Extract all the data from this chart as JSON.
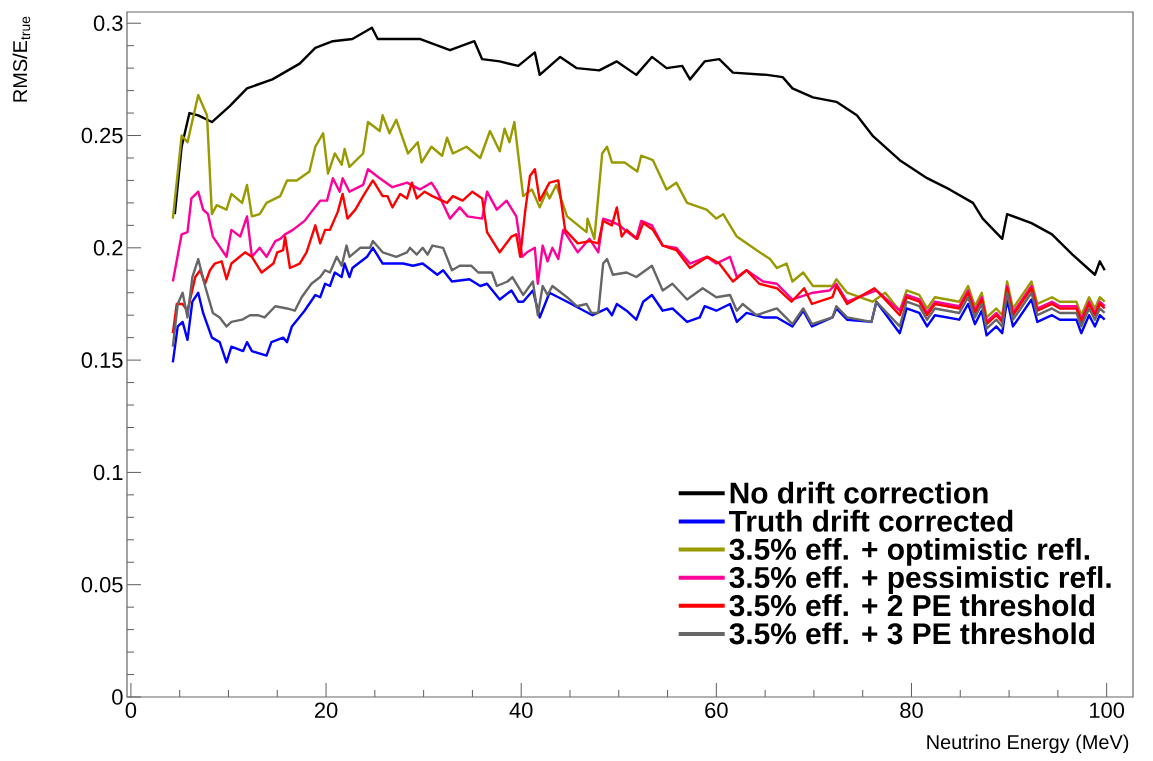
{
  "chart_data": {
    "type": "line",
    "xlabel": "Neutrino Energy (MeV)",
    "ylabel": "RMS/E$_{true}$",
    "xlim": [
      -0.4,
      102.7
    ],
    "ylim": [
      0,
      0.305
    ],
    "xticks": [
      0,
      20,
      40,
      60,
      80,
      100
    ],
    "yticks": [
      0,
      0.05,
      0.1,
      0.15,
      0.2,
      0.25,
      0.3
    ],
    "legend": "bottom right",
    "marker": "none",
    "line_style": "solid",
    "grid": false,
    "series": [
      {
        "name": "No drift correction",
        "color": "#000000",
        "x": [
          4.5,
          5.2,
          6.0,
          6.9,
          8.3,
          10.1,
          11.9,
          14.5,
          17.3,
          18.9,
          20.7,
          22.7,
          24.7,
          25.3,
          29.6,
          32.7,
          35.2,
          36,
          37.8,
          39.7,
          41.4,
          41.9,
          44,
          45.7,
          48,
          49.8,
          51.8,
          53.4,
          54.9,
          56.5,
          57.3,
          58.8,
          60.3,
          61.7,
          65.2,
          66.8,
          67.8,
          69.9,
          72.3,
          74.4,
          76,
          78.8,
          81.6,
          83.9,
          86.3,
          87.3,
          89.3,
          89.8,
          92.3,
          94.4,
          96.5,
          98.8,
          99.3,
          99.8
        ],
        "values": [
          0.215,
          0.245,
          0.26,
          0.259,
          0.256,
          0.263,
          0.271,
          0.275,
          0.282,
          0.289,
          0.292,
          0.293,
          0.298,
          0.293,
          0.293,
          0.288,
          0.292,
          0.284,
          0.283,
          0.281,
          0.287,
          0.277,
          0.285,
          0.28,
          0.279,
          0.283,
          0.277,
          0.285,
          0.28,
          0.281,
          0.275,
          0.283,
          0.284,
          0.278,
          0.277,
          0.276,
          0.271,
          0.267,
          0.265,
          0.259,
          0.25,
          0.239,
          0.231,
          0.226,
          0.22,
          0.213,
          0.204,
          0.215,
          0.211,
          0.206,
          0.197,
          0.188,
          0.194,
          0.19
        ]
      },
      {
        "name": "Truth drift corrected",
        "color": "#0000ff",
        "x": [
          4.3,
          4.8,
          5.3,
          5.8,
          6.3,
          6.9,
          7.4,
          8.3,
          9.1,
          9.8,
          10.3,
          11.5,
          11.9,
          12.4,
          13.9,
          14.4,
          15.6,
          16,
          16.5,
          17.8,
          18.9,
          19.4,
          19.9,
          20.4,
          20.9,
          21.6,
          21.9,
          22.4,
          22.7,
          24.2,
          24.8,
          25.8,
          27.9,
          28.9,
          29.9,
          31.4,
          32,
          32.9,
          34.7,
          35.8,
          36.5,
          37.8,
          39,
          39.7,
          40.2,
          41.2,
          41.9,
          42.9,
          44.7,
          46,
          47.3,
          48.8,
          49.3,
          49.8,
          50.8,
          51.8,
          52.5,
          53.4,
          54.5,
          55.5,
          57,
          58.3,
          58.8,
          60,
          61.4,
          62.1,
          63.1,
          64.8,
          66.2,
          67.8,
          68.9,
          69.8,
          71.9,
          72.3,
          73.4,
          75.9,
          76.4,
          78.8,
          79.5,
          80.8,
          81.6,
          82.4,
          84.9,
          85.8,
          86.5,
          87.2,
          87.7,
          88.7,
          89.3,
          89.8,
          90.4,
          92.3,
          92.9,
          94.4,
          95.2,
          96.9,
          97.4,
          98.2,
          98.8,
          99.3,
          99.8
        ],
        "values": [
          0.149,
          0.165,
          0.167,
          0.159,
          0.176,
          0.18,
          0.171,
          0.16,
          0.158,
          0.149,
          0.156,
          0.154,
          0.158,
          0.154,
          0.152,
          0.158,
          0.16,
          0.158,
          0.165,
          0.172,
          0.179,
          0.178,
          0.184,
          0.183,
          0.189,
          0.187,
          0.193,
          0.187,
          0.191,
          0.196,
          0.2,
          0.193,
          0.193,
          0.192,
          0.193,
          0.188,
          0.19,
          0.185,
          0.186,
          0.183,
          0.184,
          0.177,
          0.181,
          0.176,
          0.176,
          0.181,
          0.169,
          0.18,
          0.176,
          0.173,
          0.17,
          0.173,
          0.17,
          0.175,
          0.172,
          0.168,
          0.176,
          0.179,
          0.172,
          0.173,
          0.167,
          0.169,
          0.174,
          0.172,
          0.175,
          0.167,
          0.171,
          0.169,
          0.169,
          0.165,
          0.172,
          0.165,
          0.169,
          0.173,
          0.168,
          0.167,
          0.176,
          0.162,
          0.173,
          0.171,
          0.165,
          0.17,
          0.168,
          0.175,
          0.166,
          0.172,
          0.161,
          0.165,
          0.162,
          0.177,
          0.165,
          0.177,
          0.167,
          0.17,
          0.168,
          0.168,
          0.162,
          0.17,
          0.165,
          0.17,
          0.168
        ]
      },
      {
        "name": "3.5% eff.  + optimistic refl.",
        "color": "#999900",
        "x": [
          4.3,
          5.2,
          5.8,
          6.9,
          7.8,
          8.3,
          8.8,
          9.8,
          10.3,
          11.4,
          11.9,
          12.4,
          13.2,
          13.9,
          15.3,
          16,
          17,
          18.3,
          18.9,
          19.7,
          20.2,
          20.9,
          21.6,
          21.9,
          22.4,
          23.8,
          24.3,
          25.5,
          25.8,
          26.5,
          27.2,
          28.4,
          29.4,
          29.8,
          30.8,
          31.9,
          32.4,
          33,
          34.4,
          35.8,
          36.8,
          37.8,
          38.3,
          38.8,
          39.3,
          40.2,
          41.1,
          41.9,
          42.6,
          42.9,
          43.6,
          44.7,
          46.7,
          46.8,
          47.5,
          48.3,
          48.8,
          49.3,
          50.6,
          51.9,
          52.3,
          53.5,
          54.9,
          55.9,
          57,
          59,
          60,
          60.7,
          62.1,
          64.1,
          65.5,
          66.2,
          67.2,
          67.8,
          68.9,
          69.9,
          71.9,
          72.3,
          73.4,
          76,
          77.3,
          78.8,
          79.5,
          80.8,
          81.6,
          82.4,
          84.9,
          85.8,
          86.5,
          87.2,
          87.7,
          88.7,
          89.3,
          89.8,
          90.4,
          92.3,
          92.9,
          94.4,
          95.2,
          96.9,
          97.4,
          98.2,
          98.8,
          99.3,
          99.8
        ],
        "values": [
          0.213,
          0.25,
          0.247,
          0.268,
          0.259,
          0.215,
          0.219,
          0.217,
          0.224,
          0.22,
          0.228,
          0.214,
          0.215,
          0.22,
          0.223,
          0.23,
          0.23,
          0.234,
          0.245,
          0.251,
          0.233,
          0.242,
          0.237,
          0.244,
          0.236,
          0.242,
          0.256,
          0.252,
          0.259,
          0.251,
          0.257,
          0.242,
          0.247,
          0.238,
          0.245,
          0.241,
          0.249,
          0.242,
          0.245,
          0.24,
          0.252,
          0.243,
          0.253,
          0.247,
          0.256,
          0.223,
          0.226,
          0.218,
          0.225,
          0.222,
          0.228,
          0.214,
          0.207,
          0.213,
          0.204,
          0.242,
          0.245,
          0.238,
          0.238,
          0.234,
          0.241,
          0.239,
          0.226,
          0.229,
          0.22,
          0.217,
          0.213,
          0.215,
          0.205,
          0.199,
          0.195,
          0.191,
          0.193,
          0.185,
          0.189,
          0.183,
          0.183,
          0.186,
          0.18,
          0.176,
          0.18,
          0.172,
          0.181,
          0.179,
          0.173,
          0.178,
          0.176,
          0.183,
          0.174,
          0.18,
          0.169,
          0.173,
          0.17,
          0.185,
          0.173,
          0.185,
          0.175,
          0.178,
          0.176,
          0.176,
          0.17,
          0.178,
          0.173,
          0.178,
          0.176
        ]
      },
      {
        "name": "3.5% eff. + pessimistic refl.",
        "color": "#ff0099",
        "x": [
          4.3,
          5.2,
          5.8,
          6.2,
          6.9,
          7.4,
          7.9,
          8.4,
          9.8,
          10.3,
          11.2,
          11.9,
          12.4,
          13.2,
          13.9,
          14.8,
          15.3,
          15.8,
          16.6,
          17.8,
          18.5,
          19.4,
          20.1,
          20.7,
          21.4,
          21.7,
          22.4,
          23.8,
          24.3,
          25.5,
          26.8,
          28.3,
          29.6,
          30.8,
          31.4,
          32.7,
          33.7,
          34.5,
          36,
          36.5,
          37.5,
          38.5,
          39.5,
          40.1,
          40.6,
          41.4,
          41.7,
          42.2,
          42.7,
          43.2,
          43.8,
          44.3,
          45.8,
          47,
          47.9,
          48.4,
          49.1,
          50.1,
          50.6,
          51.8,
          52.3,
          53.4,
          54.5,
          55.9,
          57.3,
          59,
          60,
          61.4,
          62.1,
          63.1,
          64.8,
          66.2,
          67.8,
          69.9,
          71.6,
          72.3,
          73.4,
          76.4,
          78.8,
          79.5,
          80.8,
          81.6,
          82.4,
          84.9,
          85.8,
          86.5,
          87.2,
          87.7,
          88.7,
          89.3,
          89.8,
          90.4,
          92.3,
          92.9,
          94.4,
          95.2,
          96.9,
          97.4,
          98.2,
          98.8,
          99.3,
          99.8
        ],
        "values": [
          0.185,
          0.206,
          0.207,
          0.222,
          0.225,
          0.217,
          0.215,
          0.205,
          0.196,
          0.208,
          0.205,
          0.214,
          0.196,
          0.2,
          0.196,
          0.203,
          0.204,
          0.206,
          0.208,
          0.212,
          0.216,
          0.221,
          0.221,
          0.231,
          0.225,
          0.231,
          0.225,
          0.228,
          0.235,
          0.231,
          0.227,
          0.229,
          0.226,
          0.229,
          0.225,
          0.213,
          0.218,
          0.214,
          0.213,
          0.225,
          0.217,
          0.221,
          0.214,
          0.196,
          0.198,
          0.2,
          0.184,
          0.201,
          0.194,
          0.2,
          0.195,
          0.208,
          0.198,
          0.204,
          0.198,
          0.213,
          0.212,
          0.21,
          0.208,
          0.204,
          0.212,
          0.21,
          0.201,
          0.2,
          0.193,
          0.196,
          0.193,
          0.196,
          0.187,
          0.19,
          0.185,
          0.184,
          0.177,
          0.18,
          0.181,
          0.184,
          0.176,
          0.181,
          0.172,
          0.179,
          0.177,
          0.171,
          0.176,
          0.174,
          0.181,
          0.172,
          0.178,
          0.167,
          0.171,
          0.168,
          0.183,
          0.171,
          0.183,
          0.173,
          0.176,
          0.174,
          0.174,
          0.168,
          0.176,
          0.171,
          0.176,
          0.174
        ]
      },
      {
        "name": "3.5% eff. + 2 PE threshold",
        "color": "#ff0000",
        "x": [
          4.3,
          4.7,
          5.3,
          5.8,
          6.6,
          7.1,
          7.6,
          8.1,
          8.6,
          9.3,
          9.8,
          10.3,
          11.7,
          12.4,
          13.4,
          14.6,
          15,
          15.6,
          15.8,
          16.3,
          17.3,
          18,
          18.9,
          19.4,
          19.9,
          20.4,
          21.2,
          21.7,
          22.2,
          23,
          23.8,
          24.8,
          25.8,
          26.3,
          26.8,
          27.6,
          28.3,
          28.8,
          29.3,
          30.1,
          30.9,
          32.4,
          33,
          34,
          35,
          36,
          36.5,
          37.8,
          39,
          39.5,
          39.9,
          40.4,
          40.9,
          41.4,
          41.9,
          42.9,
          43.8,
          44.5,
          45.8,
          47,
          47.9,
          48.4,
          49.3,
          49.8,
          50.3,
          50.8,
          51.9,
          52.5,
          53.5,
          54.5,
          55.9,
          57.3,
          59.1,
          60.3,
          61.7,
          63.1,
          64.4,
          66.2,
          67.7,
          69,
          69.8,
          71.9,
          72.3,
          73.4,
          76.2,
          78.8,
          79.5,
          80.8,
          81.6,
          82.4,
          84.9,
          85.8,
          86.5,
          87.2,
          87.7,
          88.7,
          89.3,
          89.8,
          90.4,
          92.3,
          92.9,
          94.4,
          95.2,
          96.9,
          97.4,
          98.2,
          98.8,
          99.3,
          99.8
        ],
        "values": [
          0.162,
          0.175,
          0.175,
          0.172,
          0.187,
          0.19,
          0.184,
          0.19,
          0.193,
          0.194,
          0.186,
          0.193,
          0.198,
          0.196,
          0.189,
          0.193,
          0.198,
          0.199,
          0.205,
          0.191,
          0.193,
          0.198,
          0.21,
          0.202,
          0.208,
          0.208,
          0.216,
          0.224,
          0.213,
          0.217,
          0.223,
          0.23,
          0.223,
          0.223,
          0.218,
          0.224,
          0.222,
          0.229,
          0.222,
          0.225,
          0.223,
          0.22,
          0.223,
          0.221,
          0.225,
          0.222,
          0.207,
          0.198,
          0.205,
          0.206,
          0.196,
          0.216,
          0.232,
          0.235,
          0.221,
          0.229,
          0.23,
          0.208,
          0.202,
          0.203,
          0.202,
          0.212,
          0.21,
          0.218,
          0.205,
          0.208,
          0.204,
          0.211,
          0.208,
          0.201,
          0.199,
          0.191,
          0.196,
          0.193,
          0.185,
          0.19,
          0.184,
          0.182,
          0.176,
          0.182,
          0.175,
          0.178,
          0.183,
          0.175,
          0.182,
          0.17,
          0.178,
          0.176,
          0.17,
          0.175,
          0.173,
          0.18,
          0.171,
          0.177,
          0.166,
          0.17,
          0.167,
          0.182,
          0.17,
          0.182,
          0.172,
          0.175,
          0.173,
          0.173,
          0.167,
          0.175,
          0.17,
          0.175,
          0.173
        ]
      },
      {
        "name": "3.5% eff. + 3 PE threshold",
        "color": "#666666",
        "x": [
          4.3,
          4.8,
          5.3,
          5.8,
          6.3,
          6.9,
          7.6,
          8.4,
          9.1,
          9.8,
          10.3,
          11.4,
          12.2,
          13,
          13.7,
          14.8,
          16,
          16.8,
          17.5,
          18.5,
          19.4,
          19.9,
          20.4,
          21.1,
          21.6,
          22.1,
          22.4,
          23.5,
          24.5,
          24.8,
          25.8,
          27.2,
          28.3,
          28.6,
          29.3,
          29.9,
          30.4,
          30.9,
          32,
          32.9,
          33.7,
          34.9,
          35.6,
          37,
          37.5,
          38.6,
          39.1,
          40.2,
          41.2,
          41.7,
          42.2,
          42.7,
          43.2,
          44.7,
          45.7,
          46.7,
          47.2,
          47.9,
          48.4,
          48.8,
          49.4,
          50.8,
          51.8,
          53.4,
          54.5,
          55.5,
          57,
          58.6,
          60,
          61.4,
          62.1,
          62.7,
          64.1,
          66.2,
          67.8,
          68.9,
          69.8,
          71.9,
          72.3,
          73.4,
          75.9,
          76.4,
          78.8,
          79.5,
          80.8,
          81.6,
          82.4,
          84.9,
          85.8,
          86.5,
          87.2,
          87.7,
          88.7,
          89.3,
          89.8,
          90.4,
          92.3,
          92.9,
          94.4,
          95.2,
          96.9,
          97.4,
          98.2,
          98.8,
          99.3,
          99.8
        ],
        "values": [
          0.156,
          0.175,
          0.18,
          0.169,
          0.187,
          0.195,
          0.183,
          0.171,
          0.169,
          0.165,
          0.167,
          0.168,
          0.17,
          0.17,
          0.169,
          0.174,
          0.173,
          0.172,
          0.178,
          0.184,
          0.187,
          0.19,
          0.189,
          0.196,
          0.192,
          0.201,
          0.196,
          0.2,
          0.2,
          0.203,
          0.198,
          0.196,
          0.198,
          0.2,
          0.197,
          0.2,
          0.197,
          0.201,
          0.2,
          0.19,
          0.192,
          0.192,
          0.189,
          0.189,
          0.183,
          0.185,
          0.187,
          0.179,
          0.185,
          0.17,
          0.183,
          0.179,
          0.183,
          0.178,
          0.174,
          0.175,
          0.171,
          0.171,
          0.193,
          0.195,
          0.188,
          0.189,
          0.187,
          0.192,
          0.181,
          0.184,
          0.177,
          0.182,
          0.178,
          0.179,
          0.172,
          0.175,
          0.17,
          0.173,
          0.166,
          0.173,
          0.166,
          0.169,
          0.174,
          0.169,
          0.167,
          0.176,
          0.165,
          0.176,
          0.174,
          0.168,
          0.173,
          0.171,
          0.178,
          0.169,
          0.175,
          0.164,
          0.168,
          0.165,
          0.18,
          0.168,
          0.18,
          0.17,
          0.173,
          0.171,
          0.171,
          0.165,
          0.173,
          0.168,
          0.173,
          0.171
        ]
      }
    ]
  }
}
